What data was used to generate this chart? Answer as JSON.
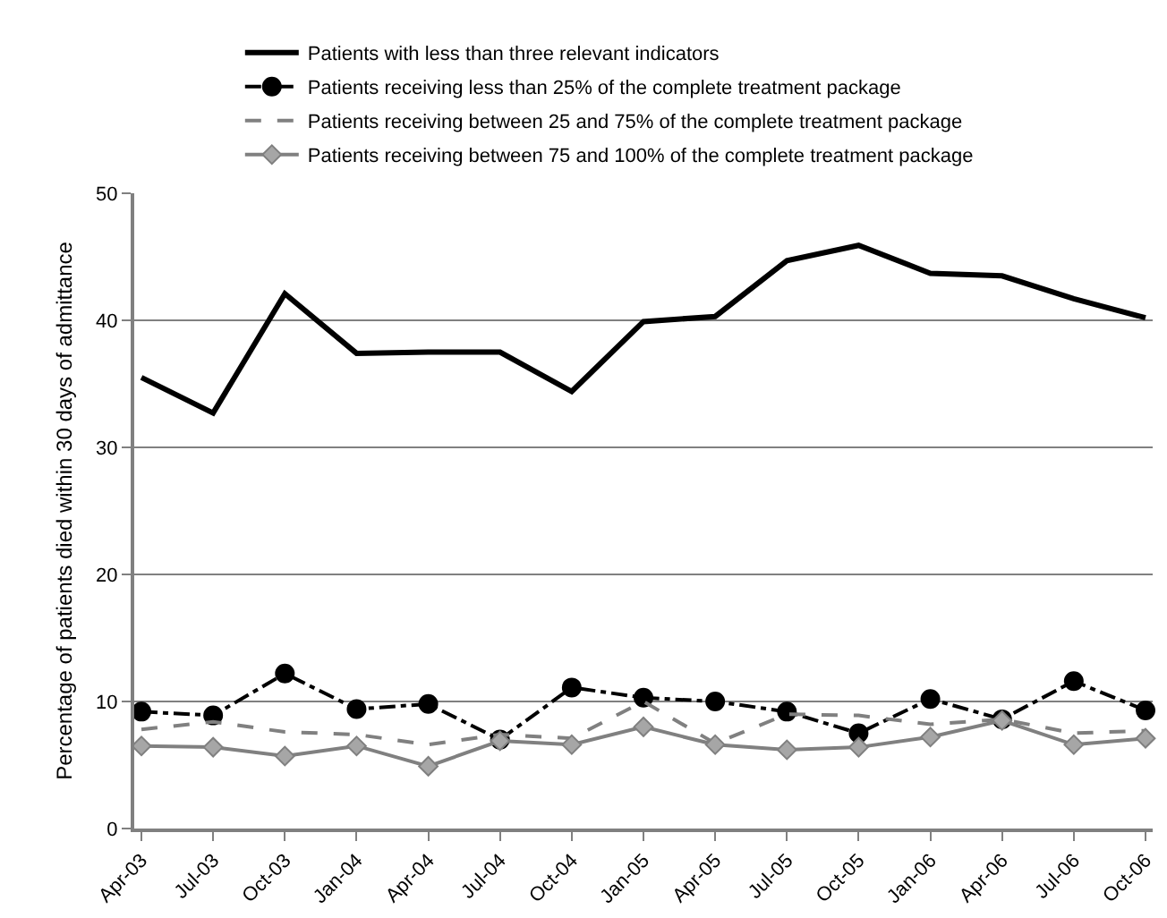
{
  "chart_data": {
    "type": "line",
    "ylabel": "Percentage of patients died within 30 days of admittance",
    "categories": [
      "Apr-03",
      "Jul-03",
      "Oct-03",
      "Jan-04",
      "Apr-04",
      "Jul-04",
      "Oct-04",
      "Jan-05",
      "Apr-05",
      "Jul-05",
      "Oct-05",
      "Jan-06",
      "Apr-06",
      "Jul-06",
      "Oct-06"
    ],
    "series": [
      {
        "name": "Patients with less than three relevant indicators",
        "color": "#000000",
        "line_style": "solid",
        "marker": "none",
        "values": [
          35.5,
          32.7,
          42.1,
          37.4,
          37.5,
          37.5,
          34.4,
          39.9,
          40.3,
          44.7,
          45.9,
          43.7,
          43.5,
          41.7,
          40.2
        ]
      },
      {
        "name": "Patients receiving less than 25% of the complete treatment package",
        "color": "#000000",
        "line_style": "dashdot",
        "marker": "circle",
        "values": [
          9.2,
          8.9,
          12.2,
          9.4,
          9.8,
          7.0,
          11.1,
          10.3,
          10.0,
          9.2,
          7.5,
          10.2,
          8.6,
          11.6,
          9.3
        ]
      },
      {
        "name": "Patients receiving between 25 and 75% of the complete treatment package",
        "color": "#808080",
        "line_style": "dashed",
        "marker": "none",
        "values": [
          7.8,
          8.4,
          7.6,
          7.4,
          6.6,
          7.4,
          7.1,
          10.0,
          6.7,
          9.0,
          8.9,
          8.2,
          8.6,
          7.5,
          7.7
        ]
      },
      {
        "name": "Patients receiving between 75 and 100% of the complete treatment package",
        "color": "#808080",
        "line_style": "solid",
        "marker": "diamond",
        "values": [
          6.5,
          6.4,
          5.7,
          6.5,
          4.9,
          6.9,
          6.6,
          8.0,
          6.6,
          6.2,
          6.4,
          7.2,
          8.5,
          6.6,
          7.1
        ]
      }
    ],
    "ylim": [
      0,
      50
    ],
    "yticks": [
      0,
      10,
      20,
      30,
      40,
      50
    ],
    "grid": "y",
    "legend": "top"
  }
}
